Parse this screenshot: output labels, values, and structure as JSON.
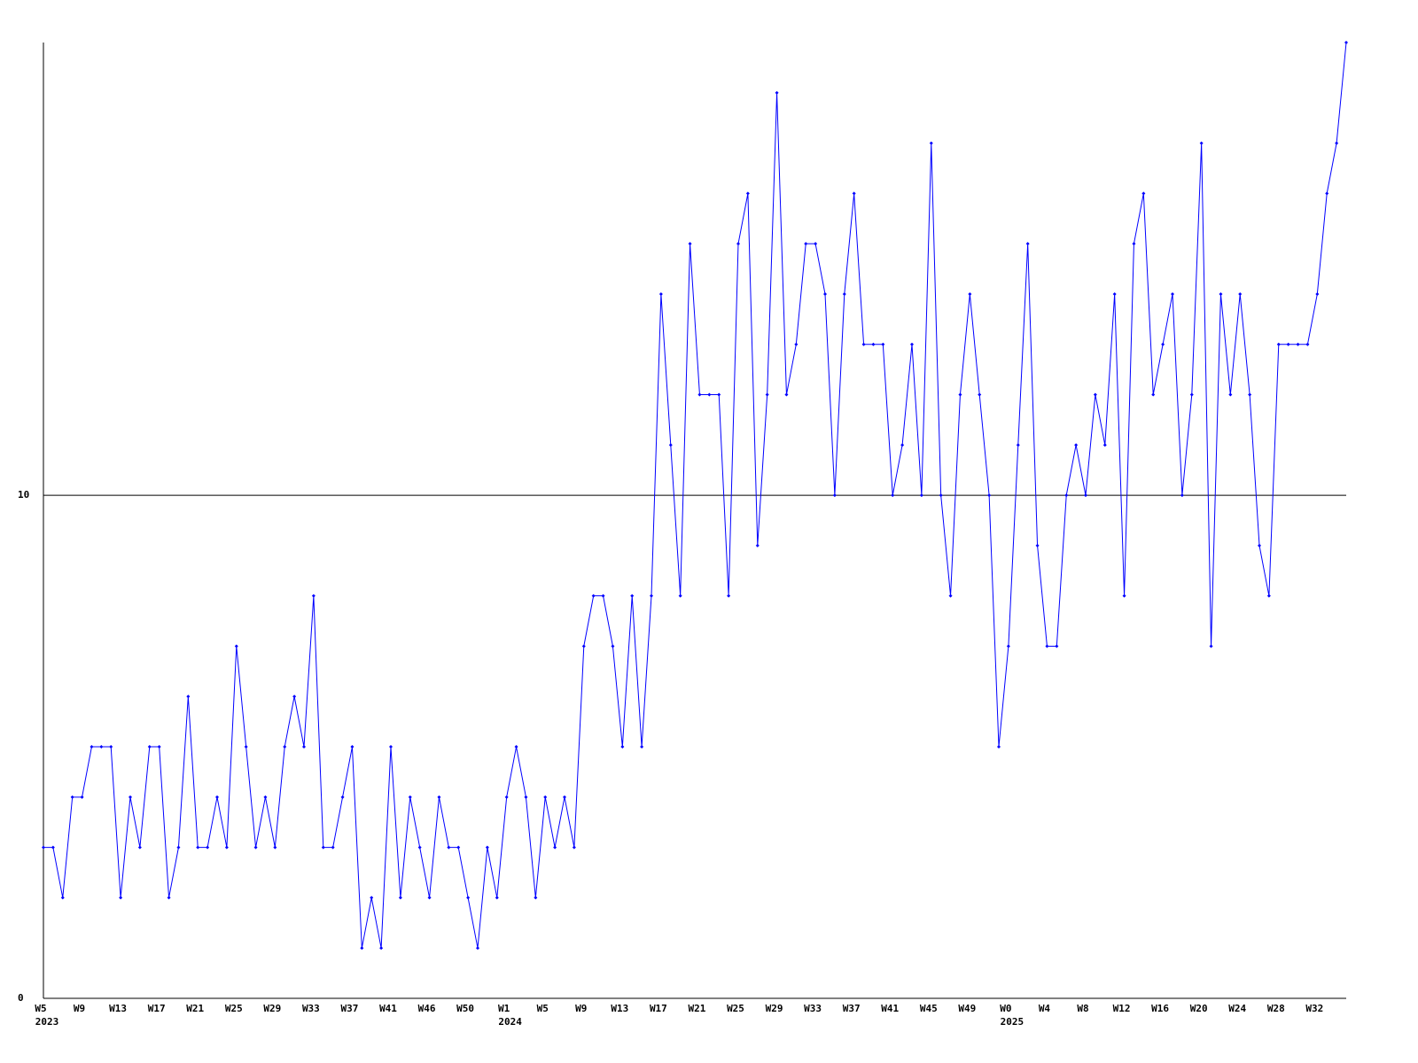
{
  "chart_data": {
    "type": "line",
    "categories": [
      "W5",
      null,
      null,
      null,
      "W9",
      null,
      null,
      null,
      "W13",
      null,
      null,
      null,
      "W17",
      null,
      null,
      null,
      "W21",
      null,
      null,
      null,
      "W25",
      null,
      null,
      null,
      "W29",
      null,
      null,
      null,
      "W33",
      null,
      null,
      null,
      "W37",
      null,
      null,
      null,
      "W41",
      null,
      null,
      null,
      "W46",
      null,
      null,
      null,
      "W50",
      null,
      null,
      null,
      "W1",
      null,
      null,
      null,
      "W5",
      null,
      null,
      null,
      "W9",
      null,
      null,
      null,
      "W13",
      null,
      null,
      null,
      "W17",
      null,
      null,
      null,
      "W21",
      null,
      null,
      null,
      "W25",
      null,
      null,
      null,
      "W29",
      null,
      null,
      null,
      "W33",
      null,
      null,
      null,
      "W37",
      null,
      null,
      null,
      "W41",
      null,
      null,
      null,
      "W45",
      null,
      null,
      null,
      "W49",
      null,
      null,
      null,
      "W0",
      null,
      null,
      null,
      "W4",
      null,
      null,
      null,
      "W8",
      null,
      null,
      null,
      "W12",
      null,
      null,
      null,
      "W16",
      null,
      null,
      null,
      "W20",
      null,
      null,
      null,
      "W24",
      null,
      null,
      null,
      "W28",
      null,
      null,
      null,
      "W32",
      null,
      null,
      null
    ],
    "years": [
      "2023",
      null,
      null,
      null,
      null,
      null,
      null,
      null,
      null,
      null,
      null,
      null,
      null,
      null,
      null,
      null,
      null,
      null,
      null,
      null,
      null,
      null,
      null,
      null,
      null,
      null,
      null,
      null,
      null,
      null,
      null,
      null,
      null,
      null,
      null,
      null,
      null,
      null,
      null,
      null,
      null,
      null,
      null,
      null,
      null,
      null,
      null,
      null,
      "2024",
      null,
      null,
      null,
      null,
      null,
      null,
      null,
      null,
      null,
      null,
      null,
      null,
      null,
      null,
      null,
      null,
      null,
      null,
      null,
      null,
      null,
      null,
      null,
      null,
      null,
      null,
      null,
      null,
      null,
      null,
      null,
      null,
      null,
      null,
      null,
      null,
      null,
      null,
      null,
      null,
      null,
      null,
      null,
      null,
      null,
      null,
      null,
      null,
      null,
      null,
      null,
      "2025",
      null,
      null,
      null,
      null,
      null,
      null,
      null,
      null,
      null,
      null,
      null,
      null,
      null,
      null,
      null,
      null,
      null,
      null,
      null,
      null,
      null,
      null,
      null,
      null,
      null,
      null,
      null,
      null,
      null,
      null,
      null,
      null,
      null,
      null,
      null
    ],
    "values": [
      3,
      3,
      2,
      4,
      4,
      5,
      5,
      5,
      2,
      4,
      3,
      5,
      5,
      2,
      3,
      6,
      3,
      3,
      4,
      3,
      7,
      5,
      3,
      4,
      3,
      5,
      6,
      5,
      8,
      3,
      3,
      4,
      5,
      1,
      2,
      1,
      5,
      2,
      4,
      3,
      2,
      4,
      3,
      3,
      2,
      1,
      3,
      2,
      4,
      5,
      4,
      2,
      4,
      3,
      4,
      3,
      7,
      8,
      8,
      7,
      5,
      8,
      5,
      8,
      14,
      11,
      8,
      15,
      12,
      12,
      12,
      8,
      15,
      16,
      9,
      12,
      18,
      12,
      13,
      15,
      15,
      14,
      10,
      14,
      16,
      13,
      13,
      13,
      10,
      11,
      13,
      10,
      17,
      10,
      8,
      12,
      14,
      12,
      10,
      5,
      7,
      11,
      15,
      9,
      7,
      7,
      10,
      11,
      10,
      12,
      11,
      14,
      8,
      15,
      16,
      12,
      13,
      14,
      10,
      12,
      17,
      7,
      14,
      12,
      14,
      12,
      9,
      8,
      13,
      13,
      13,
      13,
      14,
      16,
      17,
      19
    ],
    "color": "#0000ff",
    "ylim": [
      0,
      19
    ],
    "yticks": [
      0,
      10
    ],
    "grid": true
  }
}
